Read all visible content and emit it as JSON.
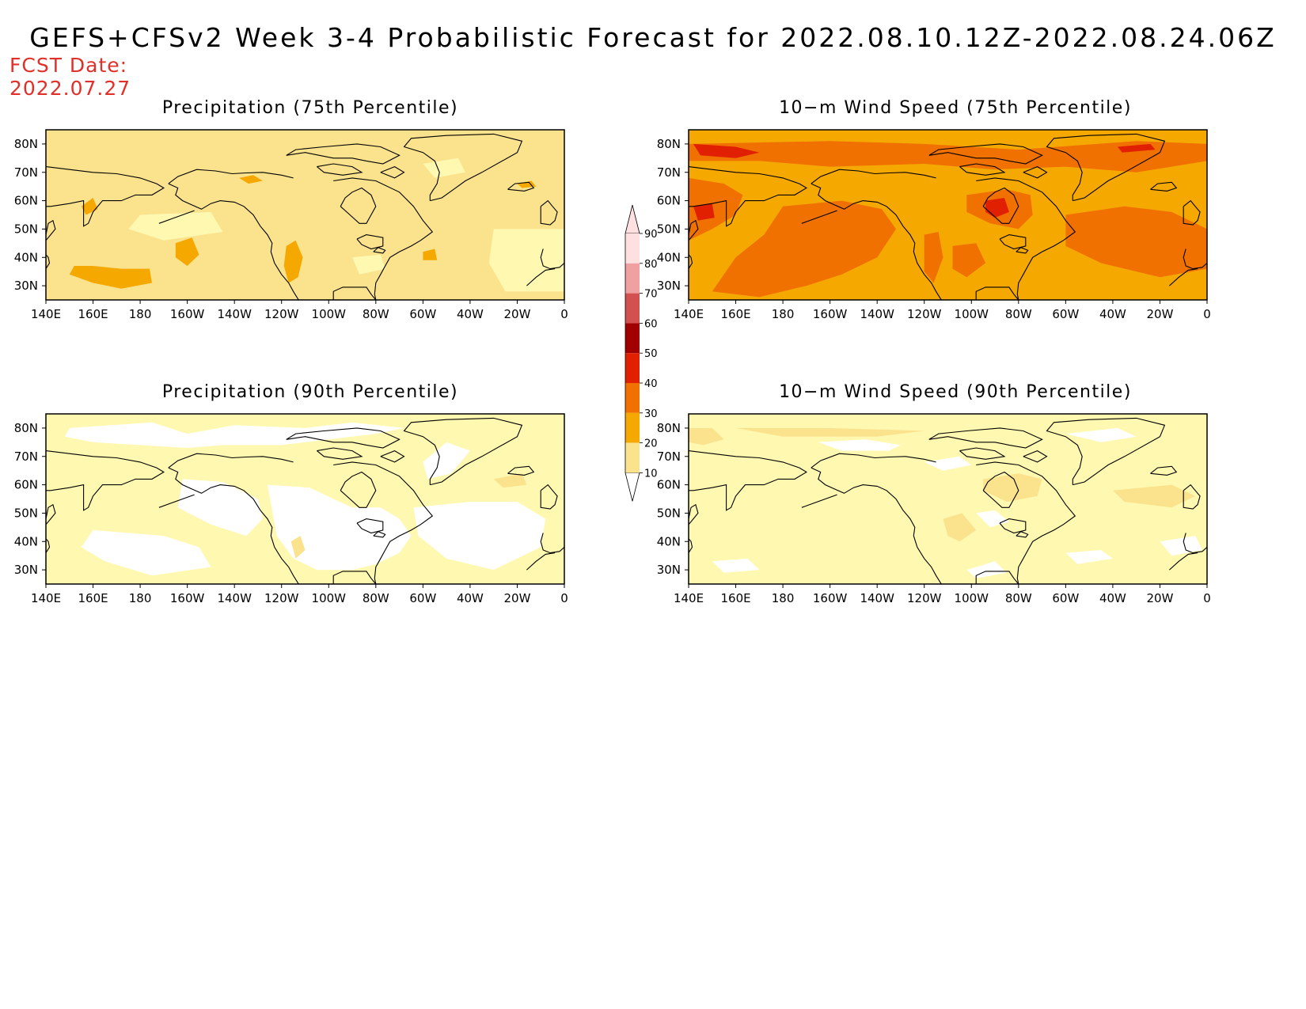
{
  "figure": {
    "title": "GEFS+CFSv2 Week 3-4 Probabilistic Forecast for 2022.08.10.12Z-2022.08.24.06Z",
    "fcst_label": "FCST Date:",
    "fcst_date": "2022.07.27"
  },
  "axes": {
    "lon_ticks": [
      "140E",
      "160E",
      "180",
      "160W",
      "140W",
      "120W",
      "100W",
      "80W",
      "60W",
      "40W",
      "20W",
      "0"
    ],
    "lat_ticks": [
      "80N",
      "70N",
      "60N",
      "50N",
      "40N",
      "30N"
    ]
  },
  "colorbar": {
    "levels": [
      "10",
      "20",
      "30",
      "40",
      "50",
      "60",
      "70",
      "80",
      "90"
    ],
    "colors": [
      "#fff8b0",
      "#fbe38e",
      "#f5a800",
      "#f07000",
      "#e02000",
      "#a00000",
      "#d25050",
      "#f0a0a0",
      "#ffe0e0"
    ]
  },
  "panels": [
    {
      "title": "Precipitation (75th Percentile)",
      "fill_levels": [
        20,
        30
      ],
      "dominant_level": 20
    },
    {
      "title": "10−m Wind Speed (75th Percentile)",
      "fill_levels": [
        30,
        40
      ],
      "dominant_level": 30
    },
    {
      "title": "Precipitation (90th Percentile)",
      "fill_levels": [
        10,
        20
      ],
      "dominant_level": 10
    },
    {
      "title": "10−m Wind Speed (90th Percentile)",
      "fill_levels": [
        10,
        20
      ],
      "dominant_level": 10
    }
  ]
}
